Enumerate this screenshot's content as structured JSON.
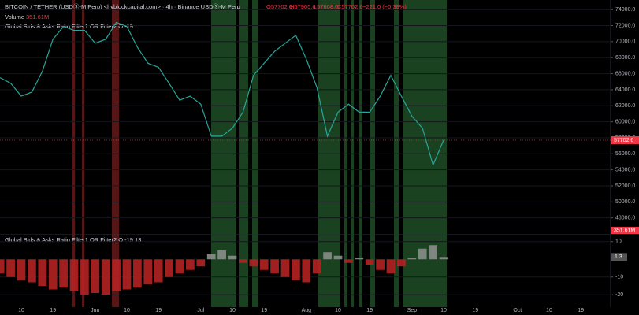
{
  "header": {
    "symbol": "BITCOIN / TETHER (USDⓈ-M Perp) <hyblockcapital.com> · 4h · Binance USDⓈ-M Perp",
    "open": "O57702.6",
    "high": "H57905.6",
    "low": "L57608.0",
    "close": "C57702.6",
    "change": "−221.0 (−0.38%)",
    "volume_label": "Volume",
    "volume_value": "351.61M",
    "indicator_top": "Global Bids & Asks Ratio Filter1 OR Filter2 O -19",
    "indicator_bottom": "Global Bids & Asks Ratio Filter1 OR Filter2 O -19 13"
  },
  "chart_data": [
    {
      "type": "line",
      "categories": [
        null,
        null,
        "10",
        null,
        null,
        "19",
        null,
        null,
        null,
        "Jun",
        null,
        null,
        "10",
        null,
        null,
        "19",
        null,
        null,
        null,
        "Jul",
        null,
        null,
        "10",
        null,
        null,
        "19",
        null,
        null,
        null,
        "Aug",
        null,
        null,
        "10",
        null,
        null,
        "19",
        null,
        null,
        null,
        "Sep",
        null,
        null,
        "10",
        null,
        null,
        "19",
        null,
        null,
        null,
        "Oct",
        null,
        null,
        "10",
        null,
        null,
        "19",
        null,
        null
      ],
      "series": [
        {
          "color": "#26a69a",
          "values": [
            65500,
            64800,
            63200,
            63700,
            66300,
            70300,
            71900,
            71400,
            71400,
            69800,
            70300,
            72400,
            71900,
            69300,
            67300,
            66800,
            64800,
            62700,
            63200,
            62200,
            58200,
            58200,
            59200,
            61200,
            65800,
            67300,
            68800,
            69800,
            70800,
            67800,
            64300,
            58200,
            61200,
            62200,
            61200,
            61200,
            63200,
            65800,
            63200,
            60700,
            59200,
            54600,
            57702.6,
            null,
            null,
            null,
            null,
            null,
            null,
            null,
            null,
            null,
            null,
            null,
            null,
            null,
            null,
            null
          ]
        }
      ],
      "ylim": [
        46000,
        75200
      ],
      "yticks": [
        {
          "value": 48000,
          "label": "48000.0"
        },
        {
          "value": 50000,
          "label": "50000.0"
        },
        {
          "value": 52000,
          "label": "52000.0"
        },
        {
          "value": 54000,
          "label": "54000.0"
        },
        {
          "value": 56000,
          "label": "56000.0"
        },
        {
          "value": 58000,
          "label": "58000.0"
        },
        {
          "value": 60000,
          "label": "60000.0"
        },
        {
          "value": 62000,
          "label": "62000.0"
        },
        {
          "value": 64000,
          "label": "64000.0"
        },
        {
          "value": 66000,
          "label": "66000.0"
        },
        {
          "value": 68000,
          "label": "68000.0"
        },
        {
          "value": 70000,
          "label": "70000.0"
        },
        {
          "value": 72000,
          "label": "72000.0"
        },
        {
          "value": 74000,
          "label": "74000.0"
        }
      ],
      "grid": true
    },
    {
      "type": "bar",
      "series": [
        {
          "color": "#b22222",
          "color_positive": "#8a8f8a",
          "values": [
            -8,
            -10,
            -12,
            -13,
            -15,
            -17,
            -16,
            -18,
            -20,
            -19,
            -20,
            -18,
            -17,
            -16,
            -14,
            -13,
            -10,
            -8,
            -6,
            -4,
            3,
            5,
            2,
            -2,
            -4,
            -6,
            -8,
            -10,
            -12,
            -13,
            -8,
            4,
            2,
            -2,
            1,
            -3,
            -6,
            -8,
            -4,
            1,
            6,
            8,
            1.3,
            null,
            null,
            null,
            null,
            null,
            null,
            null,
            null,
            null,
            null,
            null,
            null,
            null,
            null,
            null
          ]
        }
      ],
      "ylim": [
        -27,
        13
      ],
      "yticks": [
        10,
        -10,
        -20
      ],
      "grid": true
    }
  ]
}
